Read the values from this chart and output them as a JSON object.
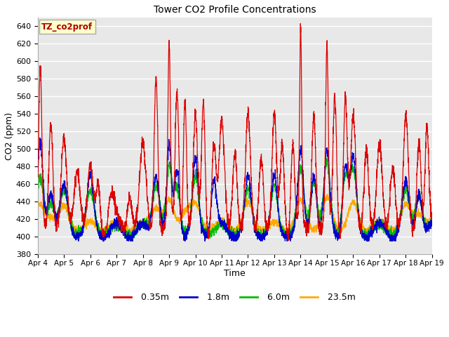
{
  "title": "Tower CO2 Profile Concentrations",
  "xlabel": "Time",
  "ylabel": "CO2 (ppm)",
  "ylim": [
    380,
    650
  ],
  "yticks": [
    380,
    400,
    420,
    440,
    460,
    480,
    500,
    520,
    540,
    560,
    580,
    600,
    620,
    640
  ],
  "plot_bg_color": "#e8e8e8",
  "grid_color": "#ffffff",
  "annotation_text": "TZ_co2prof",
  "annotation_bg": "#ffffcc",
  "annotation_border": "#aaaaaa",
  "annotation_color": "#aa0000",
  "color_035": "#dd0000",
  "color_18": "#0000cc",
  "color_60": "#00bb00",
  "color_235": "#ffaa00",
  "linewidth": 0.9,
  "xtick_labels": [
    "Apr 4",
    "Apr 5",
    "Apr 6",
    "Apr 7",
    "Apr 8",
    "Apr 9",
    "Apr 10",
    "Apr 11",
    "Apr 12",
    "Apr 13",
    "Apr 14",
    "Apr 15",
    "Apr 16",
    "Apr 17",
    "Apr 18",
    "Apr 19"
  ],
  "n_points": 3000
}
